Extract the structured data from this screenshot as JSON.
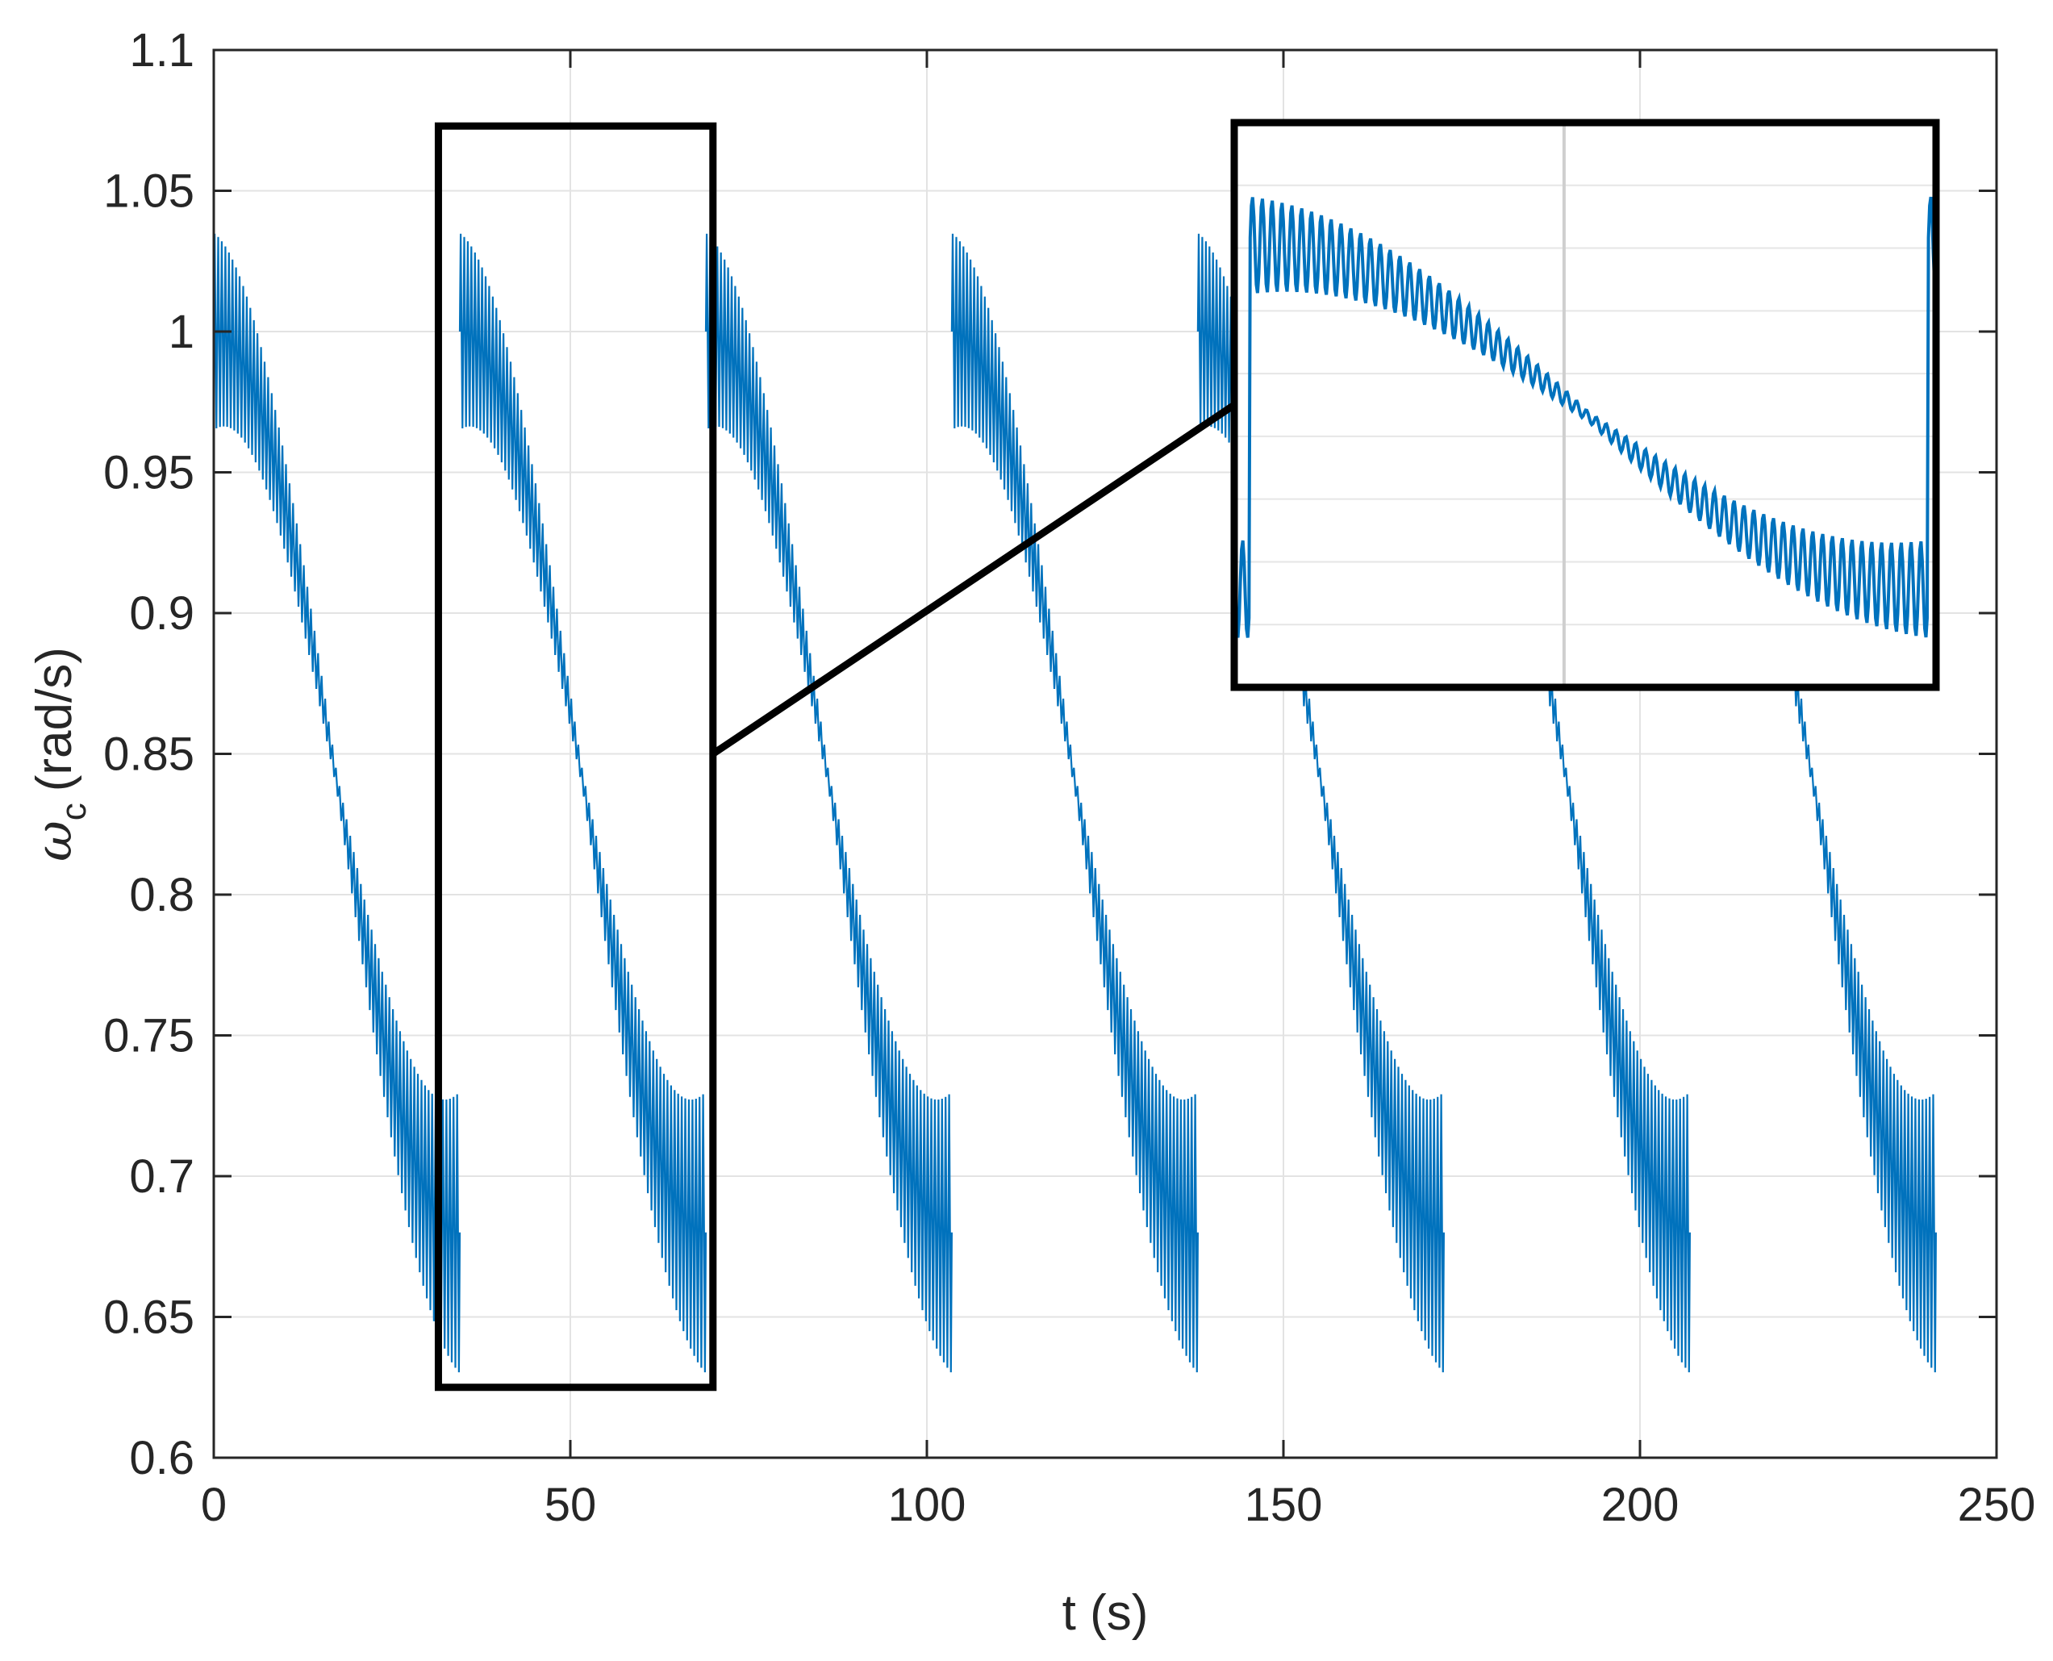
{
  "chart_data": {
    "type": "line",
    "xlabel": "t (s)",
    "ylabel": {
      "symbol": "ω",
      "subscript": "c",
      "unit": "(rad/s)"
    },
    "xlim": [
      0,
      250
    ],
    "ylim": [
      0.6,
      1.1
    ],
    "xticks": [
      "0",
      "50",
      "100",
      "150",
      "200",
      "250"
    ],
    "yticks": [
      "0.6",
      "0.65",
      "0.7",
      "0.75",
      "0.8",
      "0.85",
      "0.9",
      "0.95",
      "1",
      "1.05",
      "1.1"
    ],
    "grid": true,
    "line_color": "#0072BD",
    "signal": {
      "cycle_starts": [
        0,
        34.5,
        69,
        103.5,
        138,
        172.5,
        207
      ],
      "cycle_end": 241.5,
      "trend_start": 1.0,
      "trend_end": 0.68,
      "ripple_amplitude_start": 0.035,
      "ripple_amplitude_mid": 0.003,
      "ripple_amplitude_end": 0.05,
      "ripple_period": 0.5,
      "max": 1.067,
      "min": 0.631
    },
    "zoom_box": {
      "x": [
        31.5,
        70
      ],
      "y": [
        0.625,
        1.073
      ]
    },
    "zoom_inset": {
      "x_range": [
        34.5,
        69
      ],
      "note": "magnified view of one cycle"
    }
  }
}
